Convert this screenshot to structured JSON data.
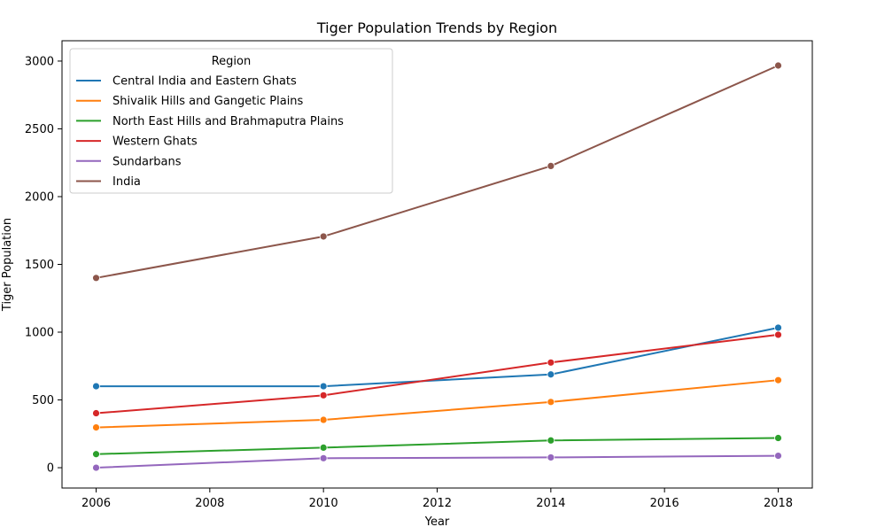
{
  "chart_data": {
    "type": "line",
    "title": "Tiger Population Trends by Region",
    "xlabel": "Year",
    "ylabel": "Tiger Population",
    "xlim": [
      2005.4,
      2018.6
    ],
    "ylim": [
      -150,
      3150
    ],
    "x_ticks": [
      2006,
      2008,
      2010,
      2012,
      2014,
      2016,
      2018
    ],
    "y_ticks": [
      0,
      500,
      1000,
      1500,
      2000,
      2500,
      3000
    ],
    "grid": false,
    "legend": {
      "title": "Region",
      "position": "top-left"
    },
    "x": [
      2006,
      2010,
      2014,
      2018
    ],
    "series": [
      {
        "name": "Central India and Eastern Ghats",
        "color": "#1f77b4",
        "values": [
          601,
          601,
          688,
          1033
        ]
      },
      {
        "name": "Shivalik Hills and Gangetic Plains",
        "color": "#ff7f0e",
        "values": [
          297,
          353,
          485,
          646
        ]
      },
      {
        "name": "North East Hills and Brahmaputra Plains",
        "color": "#2ca02c",
        "values": [
          100,
          148,
          201,
          219
        ]
      },
      {
        "name": "Western Ghats",
        "color": "#d62728",
        "values": [
          402,
          534,
          776,
          981
        ]
      },
      {
        "name": "Sundarbans",
        "color": "#9467bd",
        "values": [
          0,
          70,
          76,
          88
        ]
      },
      {
        "name": "India",
        "color": "#8c564b",
        "values": [
          1400,
          1706,
          2226,
          2967
        ]
      }
    ]
  }
}
